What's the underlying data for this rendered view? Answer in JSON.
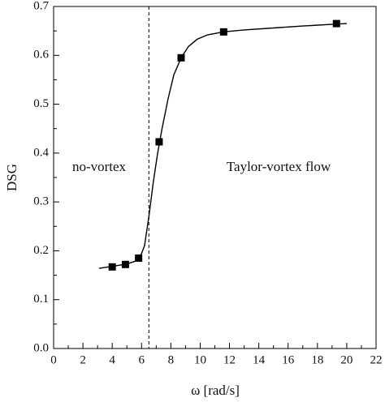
{
  "chart_data": {
    "type": "scatter",
    "x_label": "ω [rad/s]",
    "y_label": "DSG",
    "x": [
      4.0,
      4.9,
      5.8,
      7.2,
      8.7,
      11.6,
      19.3
    ],
    "values": [
      0.167,
      0.172,
      0.185,
      0.423,
      0.595,
      0.648,
      0.665
    ],
    "color": "#000000",
    "curve": {
      "x": [
        3.1,
        4.0,
        5.0,
        5.6,
        5.9,
        6.2,
        6.5,
        6.8,
        7.1,
        7.4,
        7.8,
        8.2,
        8.7,
        9.2,
        9.8,
        10.5,
        11.6,
        13.0,
        15.0,
        17.0,
        19.3,
        20.0
      ],
      "values": [
        0.164,
        0.168,
        0.173,
        0.179,
        0.187,
        0.21,
        0.27,
        0.34,
        0.4,
        0.45,
        0.51,
        0.56,
        0.595,
        0.618,
        0.633,
        0.642,
        0.648,
        0.652,
        0.656,
        0.66,
        0.664,
        0.665
      ]
    },
    "vline": 6.5,
    "annotations": [
      "no-vortex",
      "Taylor-vortex flow"
    ],
    "xlim": [
      0,
      22
    ],
    "xticks": [
      0,
      2,
      4,
      6,
      8,
      10,
      12,
      14,
      16,
      18,
      20,
      22
    ],
    "ylim": [
      0,
      0.7
    ],
    "yticks": [
      {
        "value": 0,
        "label": "0.0"
      },
      0.1,
      0.2,
      0.3,
      0.4,
      0.5,
      0.6,
      0.7
    ]
  }
}
